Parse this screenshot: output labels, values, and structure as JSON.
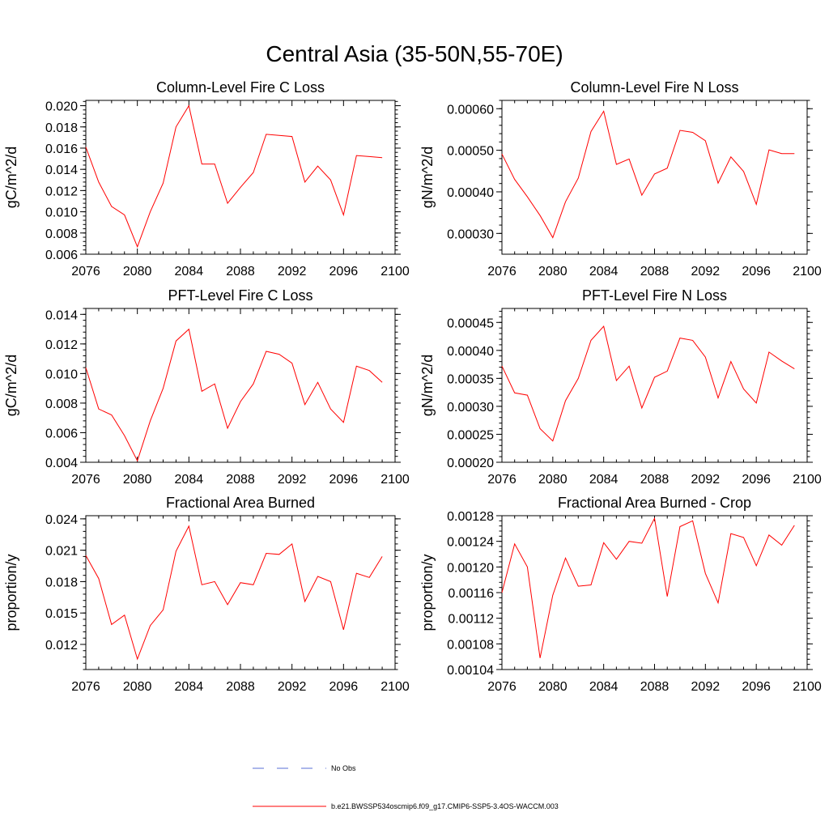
{
  "page_title": "Central Asia (35-50N,55-70E)",
  "legend": {
    "obs_label": "No Obs",
    "obs_color": "#5a6fd6",
    "model_label": "b.e21.BWSSP534oscmip6.f09_g17.CMIP6-SSP5-3.4OS-WACCM.003",
    "model_color": "#ff0000"
  },
  "chart_data": [
    {
      "type": "line",
      "title": "Column-Level Fire C Loss",
      "ylabel": "gC/m^2/d",
      "xlim": [
        2076,
        2100
      ],
      "ylim": [
        0.006,
        0.0205
      ],
      "xticks": [
        2076,
        2080,
        2084,
        2088,
        2092,
        2096,
        2100
      ],
      "yticks": [
        0.006,
        0.008,
        0.01,
        0.012,
        0.014,
        0.016,
        0.018,
        0.02
      ],
      "ytick_labels": [
        "0.006",
        "0.008",
        "0.010",
        "0.012",
        "0.014",
        "0.016",
        "0.018",
        "0.020"
      ],
      "x": [
        2076,
        2077,
        2078,
        2079,
        2080,
        2081,
        2082,
        2083,
        2084,
        2085,
        2086,
        2087,
        2088,
        2089,
        2090,
        2091,
        2092,
        2093,
        2094,
        2095,
        2096,
        2097,
        2098,
        2099
      ],
      "values": [
        0.0161,
        0.0128,
        0.0105,
        0.0097,
        0.0067,
        0.01,
        0.0127,
        0.018,
        0.02,
        0.0145,
        0.0145,
        0.0108,
        0.0123,
        0.0137,
        0.0173,
        0.0172,
        0.0171,
        0.0128,
        0.0143,
        0.013,
        0.0097,
        0.0153,
        0.0152,
        0.0151
      ]
    },
    {
      "type": "line",
      "title": "Column-Level Fire N Loss",
      "ylabel": "gN/m^2/d",
      "xlim": [
        2076,
        2100
      ],
      "ylim": [
        0.00025,
        0.00062
      ],
      "xticks": [
        2076,
        2080,
        2084,
        2088,
        2092,
        2096,
        2100
      ],
      "yticks": [
        0.0003,
        0.0004,
        0.0005,
        0.0006
      ],
      "ytick_labels": [
        "0.00030",
        "0.00040",
        "0.00050",
        "0.00060"
      ],
      "x": [
        2076,
        2077,
        2078,
        2079,
        2080,
        2081,
        2082,
        2083,
        2084,
        2085,
        2086,
        2087,
        2088,
        2089,
        2090,
        2091,
        2092,
        2093,
        2094,
        2095,
        2096,
        2097,
        2098,
        2099
      ],
      "values": [
        0.000491,
        0.00043,
        0.000388,
        0.000343,
        0.00029,
        0.000376,
        0.000433,
        0.000545,
        0.000594,
        0.000466,
        0.000479,
        0.000392,
        0.000443,
        0.000457,
        0.000548,
        0.000543,
        0.000523,
        0.000421,
        0.000484,
        0.000449,
        0.00037,
        0.000501,
        0.000492,
        0.000492
      ]
    },
    {
      "type": "line",
      "title": "PFT-Level Fire C Loss",
      "ylabel": "gC/m^2/d",
      "xlim": [
        2076,
        2100
      ],
      "ylim": [
        0.004,
        0.0144
      ],
      "xticks": [
        2076,
        2080,
        2084,
        2088,
        2092,
        2096,
        2100
      ],
      "yticks": [
        0.004,
        0.006,
        0.008,
        0.01,
        0.012,
        0.014
      ],
      "ytick_labels": [
        "0.004",
        "0.006",
        "0.008",
        "0.010",
        "0.012",
        "0.014"
      ],
      "x": [
        2076,
        2077,
        2078,
        2079,
        2080,
        2081,
        2082,
        2083,
        2084,
        2085,
        2086,
        2087,
        2088,
        2089,
        2090,
        2091,
        2092,
        2093,
        2094,
        2095,
        2096,
        2097,
        2098,
        2099
      ],
      "values": [
        0.0104,
        0.0076,
        0.0072,
        0.0058,
        0.0041,
        0.0068,
        0.009,
        0.0122,
        0.013,
        0.0088,
        0.0093,
        0.0063,
        0.0081,
        0.0093,
        0.0115,
        0.0113,
        0.0107,
        0.0079,
        0.0094,
        0.0076,
        0.0067,
        0.0105,
        0.0102,
        0.0094
      ]
    },
    {
      "type": "line",
      "title": "PFT-Level Fire N Loss",
      "ylabel": "gN/m^2/d",
      "xlim": [
        2076,
        2100
      ],
      "ylim": [
        0.0002,
        0.000475
      ],
      "xticks": [
        2076,
        2080,
        2084,
        2088,
        2092,
        2096,
        2100
      ],
      "yticks": [
        0.0002,
        0.00025,
        0.0003,
        0.00035,
        0.0004,
        0.00045
      ],
      "ytick_labels": [
        "0.00020",
        "0.00025",
        "0.00030",
        "0.00035",
        "0.00040",
        "0.00045"
      ],
      "x": [
        2076,
        2077,
        2078,
        2079,
        2080,
        2081,
        2082,
        2083,
        2084,
        2085,
        2086,
        2087,
        2088,
        2089,
        2090,
        2091,
        2092,
        2093,
        2094,
        2095,
        2096,
        2097,
        2098,
        2099
      ],
      "values": [
        0.000372,
        0.000324,
        0.00032,
        0.00026,
        0.000238,
        0.00031,
        0.00035,
        0.000418,
        0.000443,
        0.000346,
        0.000372,
        0.000297,
        0.000352,
        0.000363,
        0.000422,
        0.000418,
        0.000388,
        0.000315,
        0.00038,
        0.000331,
        0.000306,
        0.000397,
        0.000381,
        0.000367
      ]
    },
    {
      "type": "line",
      "title": "Fractional Area Burned",
      "ylabel": "proportion/y",
      "xlim": [
        2076,
        2100
      ],
      "ylim": [
        0.0096,
        0.0243
      ],
      "xticks": [
        2076,
        2080,
        2084,
        2088,
        2092,
        2096,
        2100
      ],
      "yticks": [
        0.012,
        0.015,
        0.018,
        0.021,
        0.024
      ],
      "ytick_labels": [
        "0.012",
        "0.015",
        "0.018",
        "0.021",
        "0.024"
      ],
      "x": [
        2076,
        2077,
        2078,
        2079,
        2080,
        2081,
        2082,
        2083,
        2084,
        2085,
        2086,
        2087,
        2088,
        2089,
        2090,
        2091,
        2092,
        2093,
        2094,
        2095,
        2096,
        2097,
        2098,
        2099
      ],
      "values": [
        0.0205,
        0.0183,
        0.0139,
        0.0148,
        0.0106,
        0.0138,
        0.0153,
        0.0209,
        0.0233,
        0.0177,
        0.018,
        0.0158,
        0.0179,
        0.0177,
        0.0207,
        0.0206,
        0.0216,
        0.0161,
        0.0185,
        0.018,
        0.0134,
        0.0188,
        0.0184,
        0.0204
      ]
    },
    {
      "type": "line",
      "title": "Fractional Area Burned - Crop",
      "ylabel": "proportion/y",
      "xlim": [
        2076,
        2100
      ],
      "ylim": [
        0.00104,
        0.00128
      ],
      "xticks": [
        2076,
        2080,
        2084,
        2088,
        2092,
        2096,
        2100
      ],
      "yticks": [
        0.00104,
        0.00108,
        0.00112,
        0.00116,
        0.0012,
        0.00124,
        0.00128
      ],
      "ytick_labels": [
        "0.00104",
        "0.00108",
        "0.00112",
        "0.00116",
        "0.00120",
        "0.00124",
        "0.00128"
      ],
      "x": [
        2076,
        2077,
        2078,
        2079,
        2080,
        2081,
        2082,
        2083,
        2084,
        2085,
        2086,
        2087,
        2088,
        2089,
        2090,
        2091,
        2092,
        2093,
        2094,
        2095,
        2096,
        2097,
        2098,
        2099
      ],
      "values": [
        0.00116,
        0.001236,
        0.0012,
        0.001058,
        0.001156,
        0.001214,
        0.00117,
        0.001172,
        0.001238,
        0.001212,
        0.00124,
        0.001237,
        0.001276,
        0.001154,
        0.001263,
        0.001272,
        0.00119,
        0.001144,
        0.001252,
        0.001246,
        0.001202,
        0.00125,
        0.001234,
        0.001265
      ]
    }
  ]
}
